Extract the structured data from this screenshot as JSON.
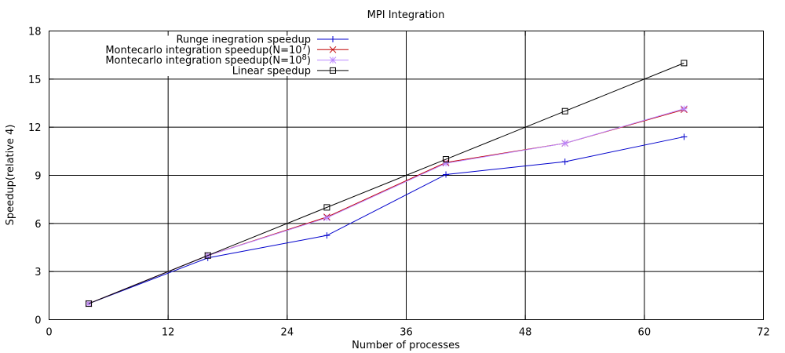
{
  "chart_data": {
    "type": "line",
    "title": "MPI Integration",
    "xlabel": "Number of processes",
    "ylabel": "Speedup(relative 4)",
    "xlim": [
      0,
      72
    ],
    "ylim": [
      0,
      18
    ],
    "xticks": [
      0,
      12,
      24,
      36,
      48,
      60,
      72
    ],
    "yticks": [
      0,
      3,
      6,
      9,
      12,
      15,
      18
    ],
    "grid": true,
    "legend_position": "top-left",
    "x": [
      4,
      16,
      28,
      40,
      52,
      64
    ],
    "series": [
      {
        "legend_prefix": "Runge inegration speedup",
        "legend_sup": "",
        "legend_suffix": "",
        "color": "#0000cc",
        "marker": "plus",
        "values": [
          1.0,
          3.85,
          5.25,
          9.05,
          9.85,
          11.4
        ]
      },
      {
        "legend_prefix": "Montecarlo integration speedup(N=10",
        "legend_sup": "7",
        "legend_suffix": ")",
        "color": "#c00000",
        "marker": "x",
        "values": [
          1.0,
          4.0,
          6.4,
          9.8,
          11.0,
          13.1
        ]
      },
      {
        "legend_prefix": "Montecarlo integration speedup(N=10",
        "legend_sup": "8",
        "legend_suffix": ")",
        "color": "#bb88ff",
        "marker": "star",
        "values": [
          1.0,
          4.0,
          6.35,
          9.75,
          11.0,
          13.15
        ]
      },
      {
        "legend_prefix": "Linear speedup",
        "legend_sup": "",
        "legend_suffix": "",
        "color": "#000000",
        "marker": "square",
        "values": [
          1,
          4,
          7,
          10,
          13,
          16
        ]
      }
    ]
  }
}
